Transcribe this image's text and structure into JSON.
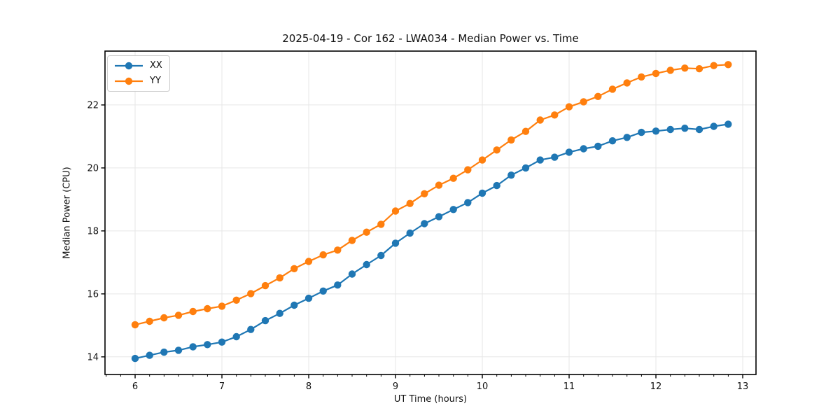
{
  "chart_data": {
    "type": "line",
    "title": "2025-04-19 - Cor 162 - LWA034 - Median Power vs. Time",
    "xlabel": "UT Time (hours)",
    "ylabel": "Median Power (CPU)",
    "xlim": [
      5.653,
      13.153
    ],
    "ylim": [
      13.44,
      23.71
    ],
    "xticks": [
      6,
      7,
      8,
      9,
      10,
      11,
      12,
      13
    ],
    "yticks": [
      14,
      16,
      18,
      20,
      22
    ],
    "x_minor_interval_hours": 0.1667,
    "grid": true,
    "legend_position": "upper-left",
    "background_color": "#ffffff",
    "grid_color": "#e6e6e6",
    "x": [
      6.0,
      6.167,
      6.333,
      6.5,
      6.667,
      6.833,
      7.0,
      7.167,
      7.333,
      7.5,
      7.667,
      7.833,
      8.0,
      8.167,
      8.333,
      8.5,
      8.667,
      8.833,
      9.0,
      9.167,
      9.333,
      9.5,
      9.667,
      9.833,
      10.0,
      10.167,
      10.333,
      10.5,
      10.667,
      10.833,
      11.0,
      11.167,
      11.333,
      11.5,
      11.667,
      11.833,
      12.0,
      12.167,
      12.333,
      12.5,
      12.667,
      12.833
    ],
    "series": [
      {
        "name": "XX",
        "color": "#1f77b4",
        "marker": "circle",
        "values": [
          13.95,
          14.05,
          14.15,
          14.21,
          14.32,
          14.39,
          14.47,
          14.64,
          14.87,
          15.15,
          15.38,
          15.64,
          15.86,
          16.09,
          16.28,
          16.63,
          16.93,
          17.22,
          17.61,
          17.93,
          18.23,
          18.45,
          18.68,
          18.9,
          19.2,
          19.44,
          19.77,
          20.0,
          20.25,
          20.34,
          20.5,
          20.61,
          20.69,
          20.86,
          20.97,
          21.13,
          21.17,
          21.22,
          21.26,
          21.22,
          21.32,
          21.39
        ]
      },
      {
        "name": "YY",
        "color": "#ff7f0e",
        "marker": "circle",
        "values": [
          15.02,
          15.13,
          15.24,
          15.32,
          15.44,
          15.53,
          15.61,
          15.8,
          16.01,
          16.26,
          16.51,
          16.8,
          17.03,
          17.24,
          17.39,
          17.7,
          17.96,
          18.21,
          18.63,
          18.87,
          19.18,
          19.45,
          19.67,
          19.94,
          20.25,
          20.57,
          20.89,
          21.16,
          21.52,
          21.68,
          21.94,
          22.1,
          22.27,
          22.5,
          22.7,
          22.89,
          23.0,
          23.1,
          23.17,
          23.15,
          23.25,
          23.28
        ]
      }
    ]
  }
}
